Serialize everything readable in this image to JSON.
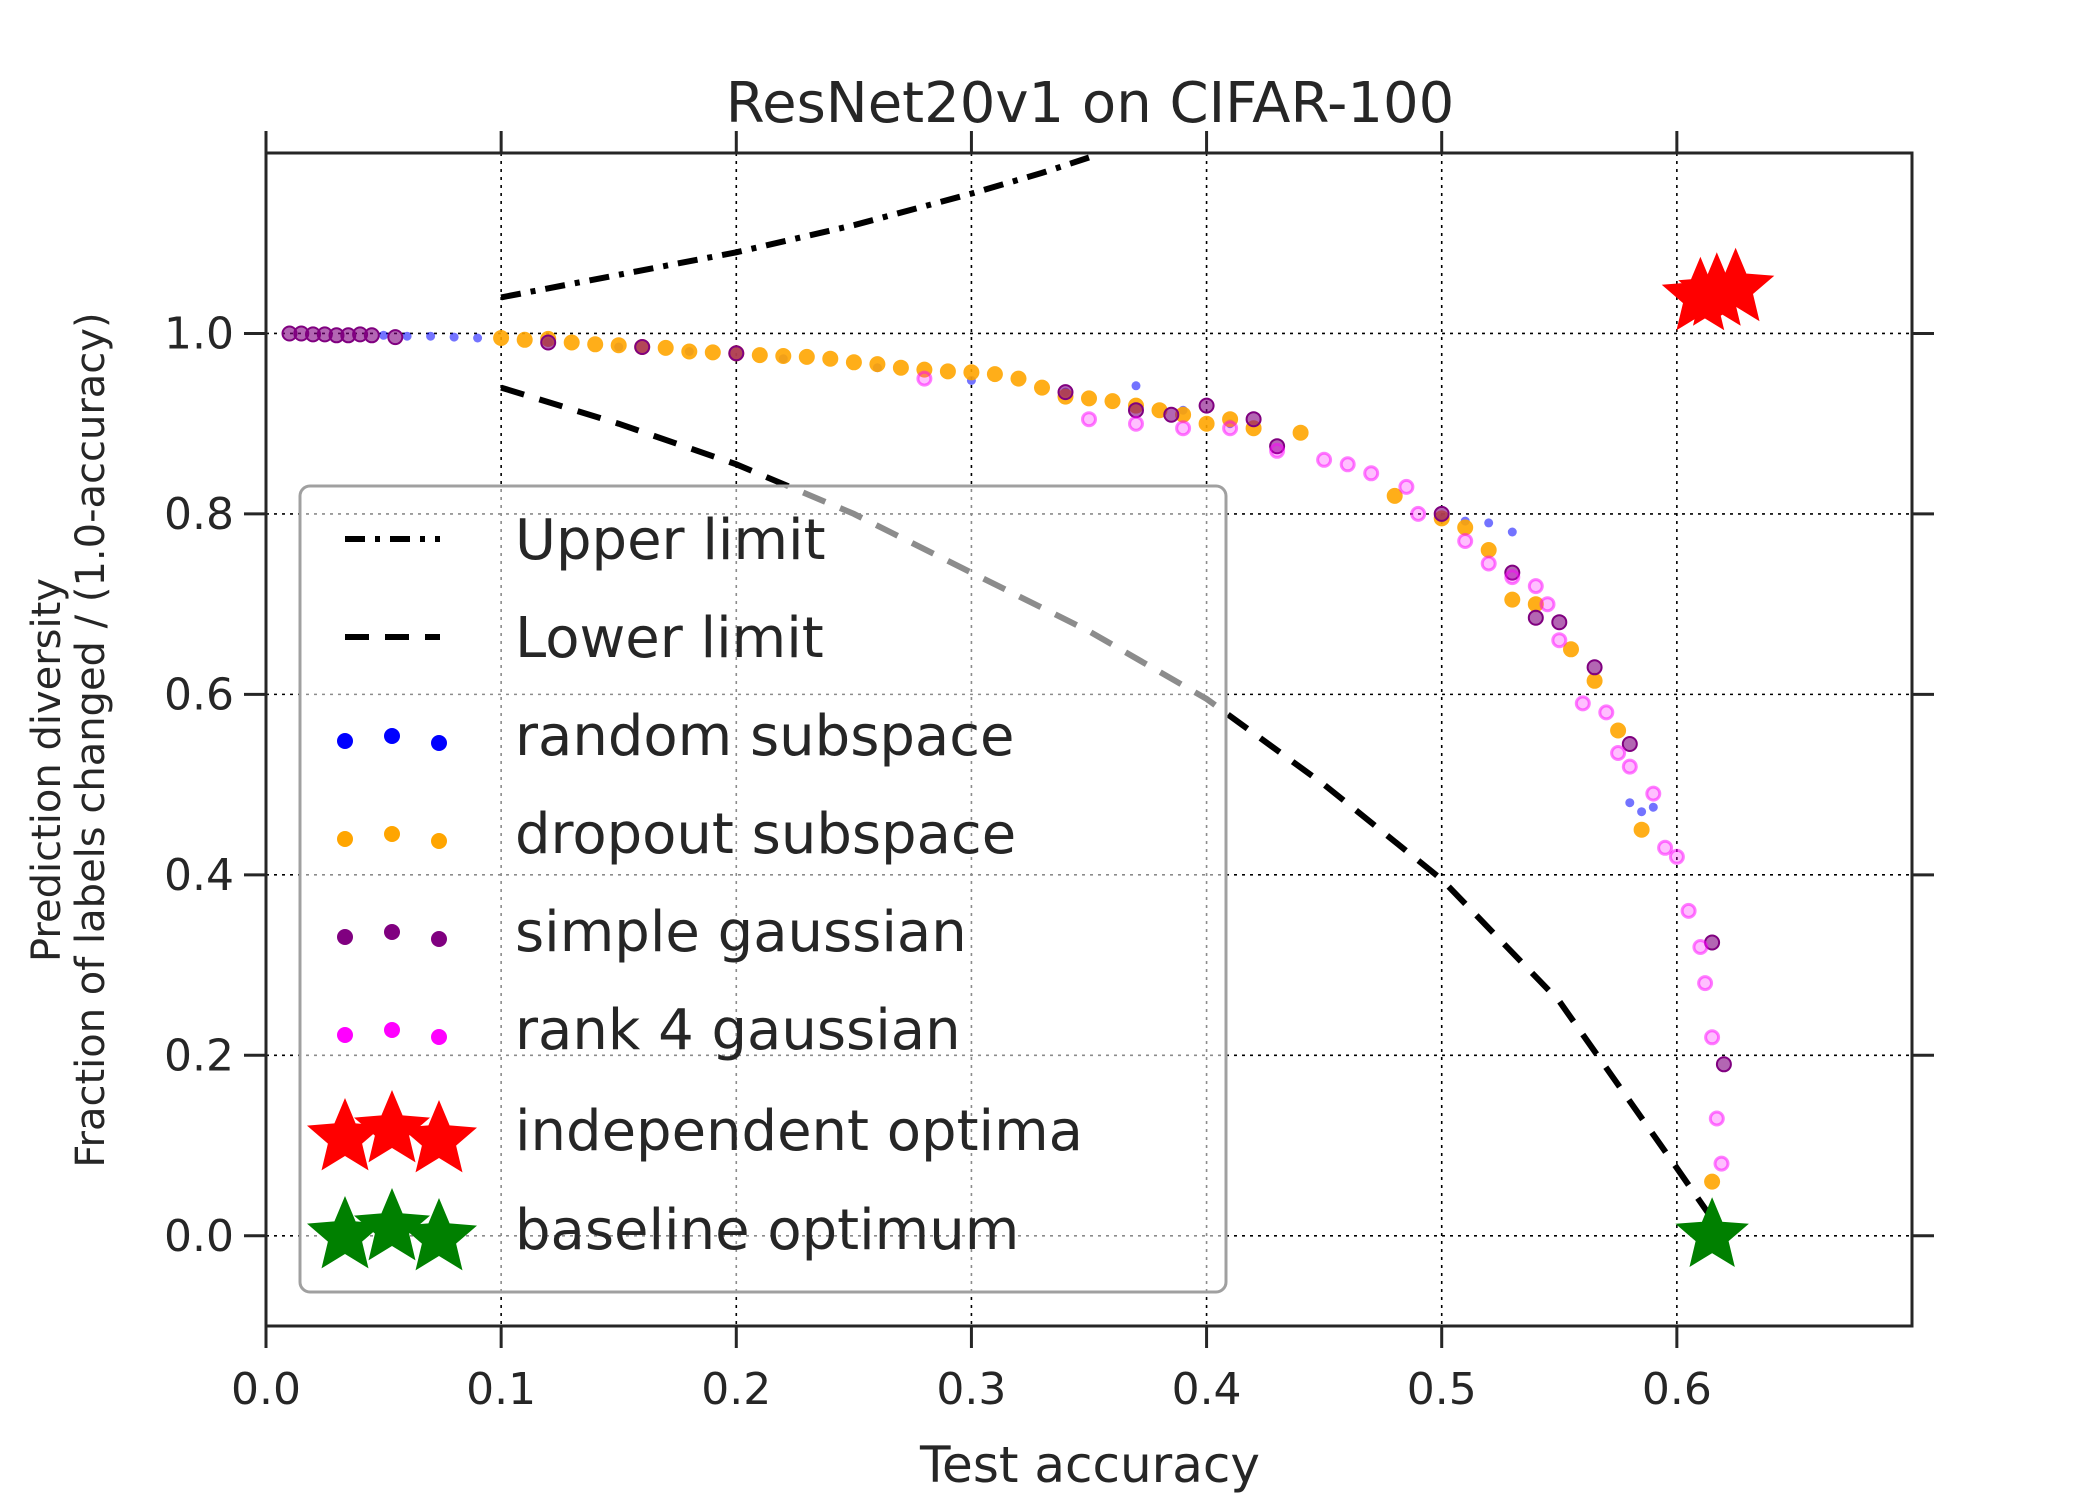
{
  "chart_data": {
    "type": "scatter",
    "title": "ResNet20v1 on CIFAR-100",
    "xlabel": "Test accuracy",
    "ylabel_line1": "Prediction diversity",
    "ylabel_line2": "Fraction of labels changed / (1.0-accuracy)",
    "xlim": [
      0.0,
      0.7
    ],
    "ylim": [
      -0.1,
      1.2
    ],
    "xticks": [
      0.0,
      0.1,
      0.2,
      0.3,
      0.4,
      0.5,
      0.6
    ],
    "xtick_labels": [
      "0.0",
      "0.1",
      "0.2",
      "0.3",
      "0.4",
      "0.5",
      "0.6"
    ],
    "yticks": [
      0.0,
      0.2,
      0.4,
      0.6,
      0.8,
      1.0
    ],
    "ytick_labels": [
      "0.0",
      "0.2",
      "0.4",
      "0.6",
      "0.8",
      "1.0"
    ],
    "grid": true,
    "legend_position": "center-left",
    "colors": {
      "random": "#0000ff",
      "dropout": "#ffa500",
      "gaussian": "#800080",
      "rank4": "#ff00ff",
      "independent": "#ff0000",
      "baseline": "#008000",
      "text": "#262626"
    },
    "lines": [
      {
        "name": "Upper limit",
        "style": "dashdot",
        "x": [
          0.1,
          0.15,
          0.2,
          0.25,
          0.3,
          0.33,
          0.35
        ],
        "y": [
          1.04,
          1.065,
          1.09,
          1.12,
          1.155,
          1.178,
          1.195
        ]
      },
      {
        "name": "Lower limit",
        "style": "dashed",
        "x": [
          0.1,
          0.15,
          0.2,
          0.25,
          0.3,
          0.35,
          0.4,
          0.45,
          0.5,
          0.55,
          0.6,
          0.62
        ],
        "y": [
          0.94,
          0.9,
          0.855,
          0.8,
          0.735,
          0.67,
          0.595,
          0.5,
          0.395,
          0.26,
          0.075,
          0.0
        ]
      }
    ],
    "series": [
      {
        "name": "random subspace",
        "key": "random",
        "x": [
          0.05,
          0.06,
          0.07,
          0.08,
          0.09,
          0.12,
          0.15,
          0.18,
          0.22,
          0.26,
          0.3,
          0.34,
          0.37,
          0.39,
          0.41,
          0.5,
          0.51,
          0.52,
          0.53,
          0.58,
          0.585,
          0.59
        ],
        "y": [
          0.998,
          0.997,
          0.997,
          0.996,
          0.995,
          0.99,
          0.985,
          0.98,
          0.972,
          0.962,
          0.948,
          0.935,
          0.942,
          0.915,
          0.9,
          0.795,
          0.792,
          0.79,
          0.78,
          0.48,
          0.47,
          0.475
        ]
      },
      {
        "name": "dropout subspace",
        "key": "dropout",
        "x": [
          0.1,
          0.11,
          0.12,
          0.13,
          0.14,
          0.15,
          0.16,
          0.17,
          0.18,
          0.19,
          0.2,
          0.21,
          0.22,
          0.23,
          0.24,
          0.25,
          0.26,
          0.27,
          0.28,
          0.29,
          0.3,
          0.31,
          0.32,
          0.33,
          0.34,
          0.35,
          0.36,
          0.37,
          0.38,
          0.39,
          0.4,
          0.41,
          0.42,
          0.44,
          0.48,
          0.5,
          0.51,
          0.52,
          0.53,
          0.54,
          0.555,
          0.565,
          0.575,
          0.585,
          0.615
        ],
        "y": [
          0.995,
          0.993,
          0.994,
          0.99,
          0.988,
          0.987,
          0.985,
          0.984,
          0.98,
          0.979,
          0.978,
          0.976,
          0.975,
          0.974,
          0.972,
          0.968,
          0.966,
          0.962,
          0.96,
          0.958,
          0.957,
          0.955,
          0.95,
          0.94,
          0.93,
          0.928,
          0.925,
          0.92,
          0.915,
          0.91,
          0.9,
          0.905,
          0.895,
          0.89,
          0.82,
          0.795,
          0.785,
          0.76,
          0.705,
          0.7,
          0.65,
          0.615,
          0.56,
          0.45,
          0.06
        ]
      },
      {
        "name": "simple gaussian",
        "key": "gaussian",
        "x": [
          0.01,
          0.015,
          0.02,
          0.025,
          0.03,
          0.035,
          0.04,
          0.045,
          0.055,
          0.12,
          0.16,
          0.2,
          0.34,
          0.37,
          0.385,
          0.4,
          0.42,
          0.43,
          0.5,
          0.53,
          0.54,
          0.55,
          0.565,
          0.58,
          0.615,
          0.62
        ],
        "y": [
          1.0,
          1.0,
          0.999,
          0.999,
          0.998,
          0.998,
          0.999,
          0.998,
          0.996,
          0.99,
          0.985,
          0.978,
          0.935,
          0.915,
          0.91,
          0.92,
          0.905,
          0.875,
          0.8,
          0.735,
          0.685,
          0.68,
          0.63,
          0.545,
          0.325,
          0.19
        ]
      },
      {
        "name": "rank 4 gaussian",
        "key": "rank4",
        "x": [
          0.28,
          0.35,
          0.37,
          0.39,
          0.41,
          0.43,
          0.45,
          0.46,
          0.47,
          0.485,
          0.49,
          0.51,
          0.52,
          0.53,
          0.54,
          0.545,
          0.55,
          0.56,
          0.57,
          0.575,
          0.58,
          0.59,
          0.595,
          0.6,
          0.605,
          0.61,
          0.612,
          0.615,
          0.617,
          0.619
        ],
        "y": [
          0.95,
          0.905,
          0.9,
          0.895,
          0.895,
          0.87,
          0.86,
          0.855,
          0.845,
          0.83,
          0.8,
          0.77,
          0.745,
          0.73,
          0.72,
          0.7,
          0.66,
          0.59,
          0.58,
          0.535,
          0.52,
          0.49,
          0.43,
          0.42,
          0.36,
          0.32,
          0.28,
          0.22,
          0.13,
          0.08
        ]
      }
    ],
    "independent_optima": {
      "x": [
        0.61,
        0.617,
        0.625
      ],
      "y": [
        1.04,
        1.045,
        1.05
      ]
    },
    "baseline_optimum": {
      "x": [
        0.615
      ],
      "y": [
        0.0
      ]
    }
  },
  "legend": {
    "upper": "Upper limit",
    "lower": "Lower limit",
    "random": "random subspace",
    "dropout": "dropout subspace",
    "gaussian": "simple gaussian",
    "rank4": "rank 4 gaussian",
    "independent": "independent optima",
    "baseline": "baseline optimum"
  }
}
